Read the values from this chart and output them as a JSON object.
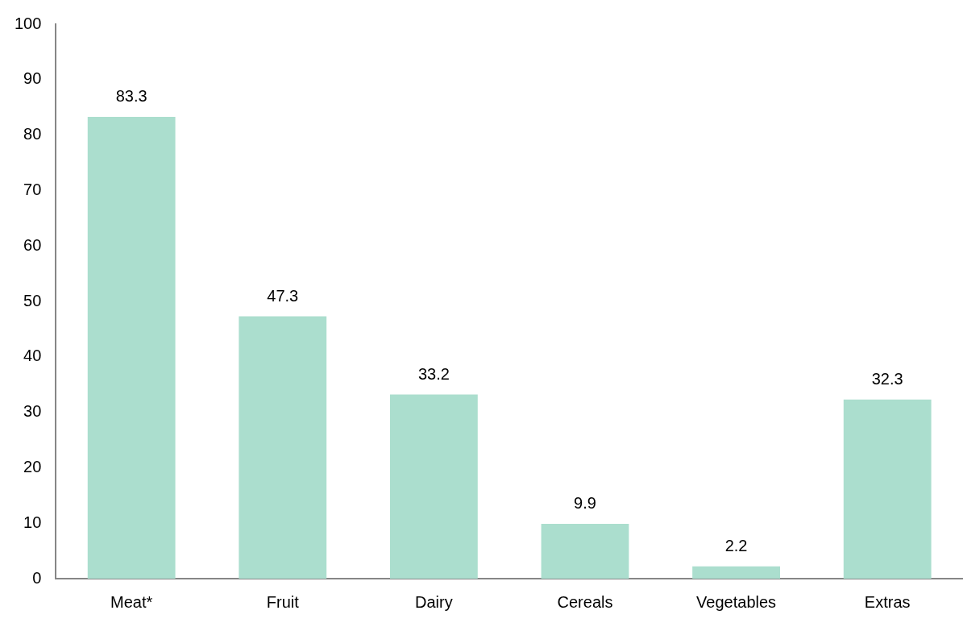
{
  "chart_data": {
    "type": "bar",
    "categories": [
      "Meat*",
      "Fruit",
      "Dairy",
      "Cereals",
      "Vegetables",
      "Extras"
    ],
    "values": [
      83.3,
      47.3,
      33.2,
      9.9,
      2.2,
      32.3
    ],
    "color": "#abdece",
    "ylim": [
      0,
      100
    ],
    "yticks": [
      0,
      10,
      20,
      30,
      40,
      50,
      60,
      70,
      80,
      90,
      100
    ],
    "grid": false,
    "legend": false,
    "data_labels": true
  }
}
